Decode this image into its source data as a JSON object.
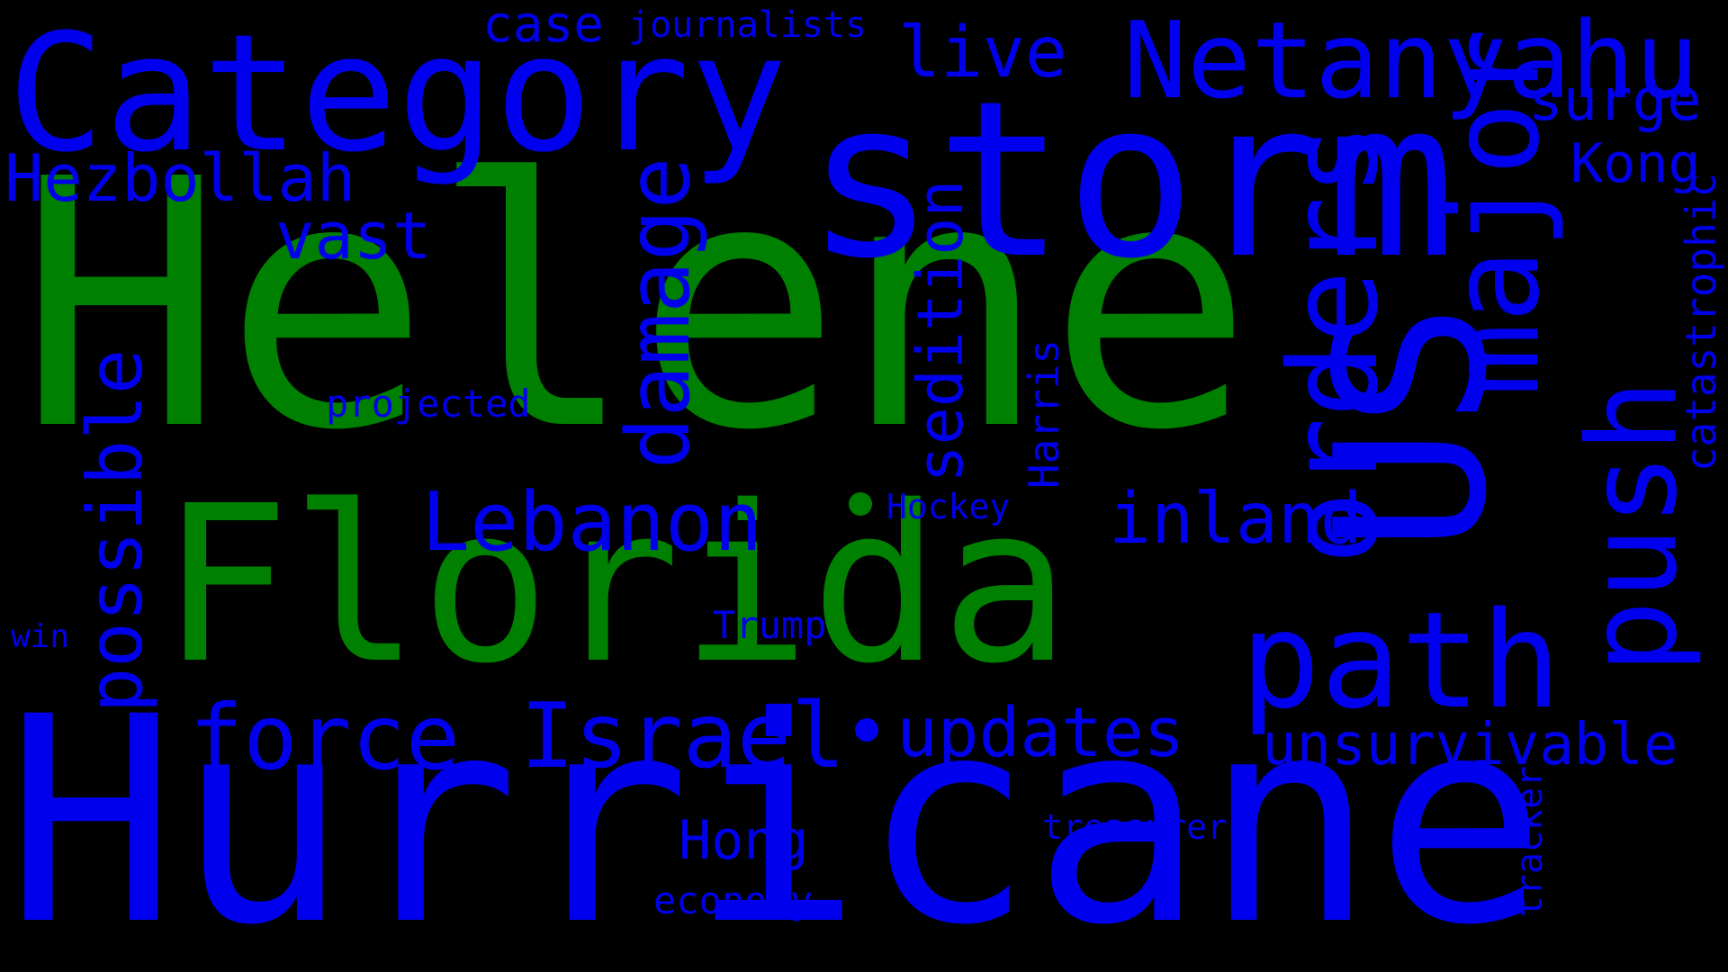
{
  "colors": {
    "background": "#000000",
    "primary": "#0000ee",
    "highlight": "#008000"
  },
  "words": [
    {
      "text": "Helene",
      "color": "green"
    },
    {
      "text": "Hurricane",
      "color": "blue"
    },
    {
      "text": "Florida",
      "color": "green"
    },
    {
      "text": "storm",
      "color": "blue"
    },
    {
      "text": "Category",
      "color": "blue"
    },
    {
      "text": "Netanyahu",
      "color": "blue"
    },
    {
      "text": "US",
      "color": "blue"
    },
    {
      "text": "path",
      "color": "blue"
    },
    {
      "text": "major",
      "color": "blue"
    },
    {
      "text": "orders",
      "color": "blue"
    },
    {
      "text": "push",
      "color": "blue"
    },
    {
      "text": "Hezbollah",
      "color": "blue"
    },
    {
      "text": "force",
      "color": "blue"
    },
    {
      "text": "Israel",
      "color": "blue"
    },
    {
      "text": "Lebanon",
      "color": "blue"
    },
    {
      "text": "updates",
      "color": "blue"
    },
    {
      "text": "inland",
      "color": "blue"
    },
    {
      "text": "unsurvivable",
      "color": "blue"
    },
    {
      "text": "damage",
      "color": "blue"
    },
    {
      "text": "sedition",
      "color": "blue"
    },
    {
      "text": "possible",
      "color": "blue"
    },
    {
      "text": "vast",
      "color": "blue"
    },
    {
      "text": "live",
      "color": "blue"
    },
    {
      "text": "case",
      "color": "blue"
    },
    {
      "text": "journalists",
      "color": "blue"
    },
    {
      "text": "surge",
      "color": "blue"
    },
    {
      "text": "Kong",
      "color": "blue"
    },
    {
      "text": "Hong",
      "color": "blue"
    },
    {
      "text": "catastrophic",
      "color": "blue"
    },
    {
      "text": "projected",
      "color": "blue"
    },
    {
      "text": "Harris",
      "color": "blue"
    },
    {
      "text": "Hockey",
      "color": "blue"
    },
    {
      "text": "Trump",
      "color": "blue"
    },
    {
      "text": "win",
      "color": "blue"
    },
    {
      "text": "treasurer",
      "color": "blue"
    },
    {
      "text": "economy",
      "color": "blue"
    },
    {
      "text": "tracker",
      "color": "blue"
    }
  ]
}
